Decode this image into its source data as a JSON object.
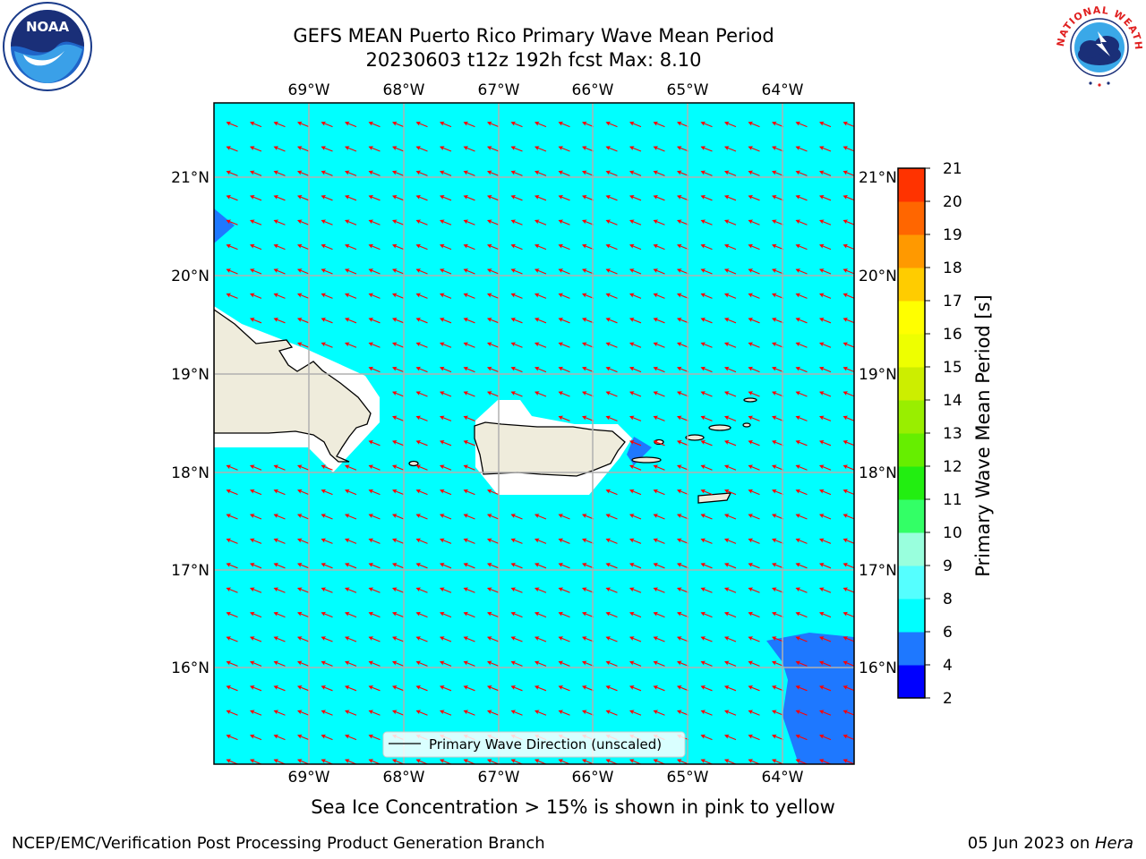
{
  "title": {
    "line1": "GEFS MEAN Puerto Rico Primary Wave Mean Period",
    "line2": "20230603 t12z 192h fcst   Max: 8.10"
  },
  "logos": {
    "left": {
      "icon": "noaa-logo",
      "text": "NOAA"
    },
    "right": {
      "icon": "nws-logo",
      "text": "NATIONAL WEATHER SERVICE"
    }
  },
  "axes": {
    "lon_labels": [
      "69°W",
      "68°W",
      "67°W",
      "66°W",
      "65°W",
      "64°W"
    ],
    "lat_labels": [
      "21°N",
      "20°N",
      "19°N",
      "18°N",
      "17°N",
      "16°N"
    ]
  },
  "legend": {
    "label": "Primary Wave Direction (unscaled)"
  },
  "colorbar": {
    "title": "Primary Wave Mean Period [s]",
    "ticks": [
      "2",
      "4",
      "6",
      "8",
      "9",
      "10",
      "11",
      "12",
      "13",
      "14",
      "15",
      "16",
      "17",
      "18",
      "19",
      "20",
      "21"
    ],
    "colors": [
      "#0000ff",
      "#1e78ff",
      "#00ffff",
      "#55ffff",
      "#99ffdd",
      "#33ff66",
      "#22ee11",
      "#66ee00",
      "#99ee00",
      "#ccee00",
      "#eeff00",
      "#ffff00",
      "#ffcc00",
      "#ff9900",
      "#ff6600",
      "#ff3300",
      "#ff0000"
    ]
  },
  "chart_data": {
    "type": "map",
    "region": "Puerto Rico",
    "field": "Primary Wave Mean Period",
    "units": "s",
    "max_value": 8.1,
    "lon_range": [
      -70.0,
      -63.3
    ],
    "lat_range": [
      15.0,
      21.75
    ],
    "dominant_range": [
      6,
      8
    ],
    "arrows": "Primary Wave Direction (unscaled)",
    "arrow_direction": "toward west-northwest",
    "grid": true
  },
  "map_colors": {
    "sea": "#00ffff",
    "low_period": "#1e78ff",
    "land": "#efecdc",
    "no_data": "#ffffff",
    "arrow": "#ff0000",
    "grid": "#b0b0b0"
  },
  "bottom_note": "Sea Ice Concentration > 15% is shown in pink to yellow",
  "footer": {
    "left": "NCEP/EMC/Verification Post Processing Product Generation Branch",
    "right_prefix": "05 Jun 2023 on ",
    "right_machine": "Hera"
  }
}
